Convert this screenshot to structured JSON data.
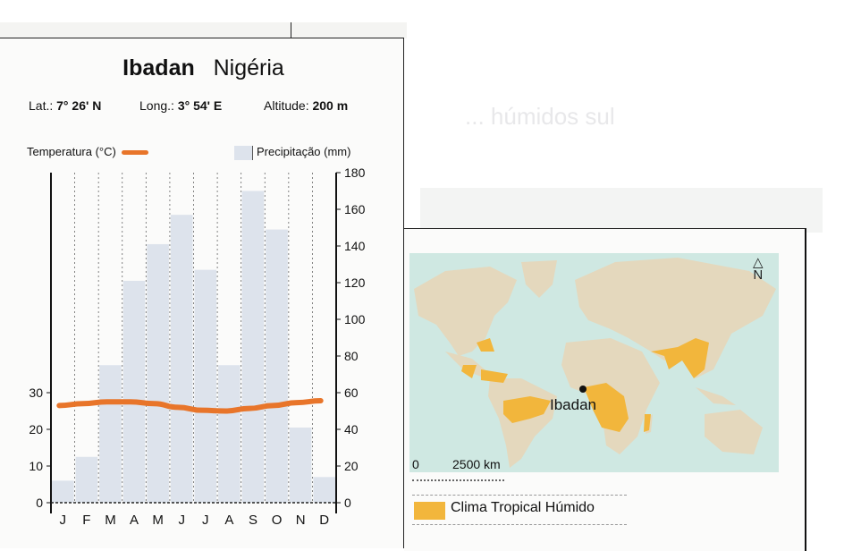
{
  "header": {
    "city": "Ibadan",
    "country": "Nigéria",
    "latitude_label": "Lat.:",
    "latitude_value": "7° 26' N",
    "longitude_label": "Long.:",
    "longitude_value": "3° 54' E",
    "altitude_label": "Altitude:",
    "altitude_value": "200 m"
  },
  "legend": {
    "temperature": "Temperatura (°C)",
    "precipitation": "Precipitação (mm)"
  },
  "background_text": "... húmidos sul",
  "map": {
    "city_label": "Ibadan",
    "north_label": "N",
    "scale_zero": "0",
    "scale_distance": "2500 km",
    "legend_label": "Clima Tropical Húmido",
    "colors": {
      "ocean": "#cfe8e2",
      "land": "#e4d8bd",
      "tropical_humid": "#f2b63c"
    }
  },
  "colors": {
    "temperature_line": "#e8752a",
    "precipitation_bar": "#dde3ec"
  },
  "chart_data": {
    "type": "bar+line",
    "title": "Ibadan Nigéria",
    "subtitle": "Lat.: 7° 26' N  Long.: 3° 54' E  Altitude: 200 m",
    "categories": [
      "J",
      "F",
      "M",
      "A",
      "M",
      "J",
      "J",
      "A",
      "S",
      "O",
      "N",
      "D"
    ],
    "series": [
      {
        "name": "Precipitação (mm)",
        "type": "bar",
        "axis": "right",
        "values": [
          12,
          25,
          75,
          121,
          141,
          157,
          127,
          75,
          170,
          149,
          41,
          14
        ]
      },
      {
        "name": "Temperatura (°C)",
        "type": "line",
        "axis": "left",
        "values": [
          26.5,
          27.0,
          27.5,
          27.5,
          27.0,
          26.0,
          25.2,
          25.0,
          25.7,
          26.5,
          27.3,
          27.8
        ]
      }
    ],
    "left_axis": {
      "label": "Temperatura (°C)",
      "ticks": [
        0,
        10,
        20,
        30
      ],
      "range": [
        0,
        90
      ]
    },
    "right_axis": {
      "label": "Precipitação (mm)",
      "ticks": [
        0,
        20,
        40,
        60,
        80,
        100,
        120,
        140,
        160,
        180
      ],
      "range": [
        0,
        180
      ]
    },
    "grid": "vertical dotted lines between months"
  }
}
